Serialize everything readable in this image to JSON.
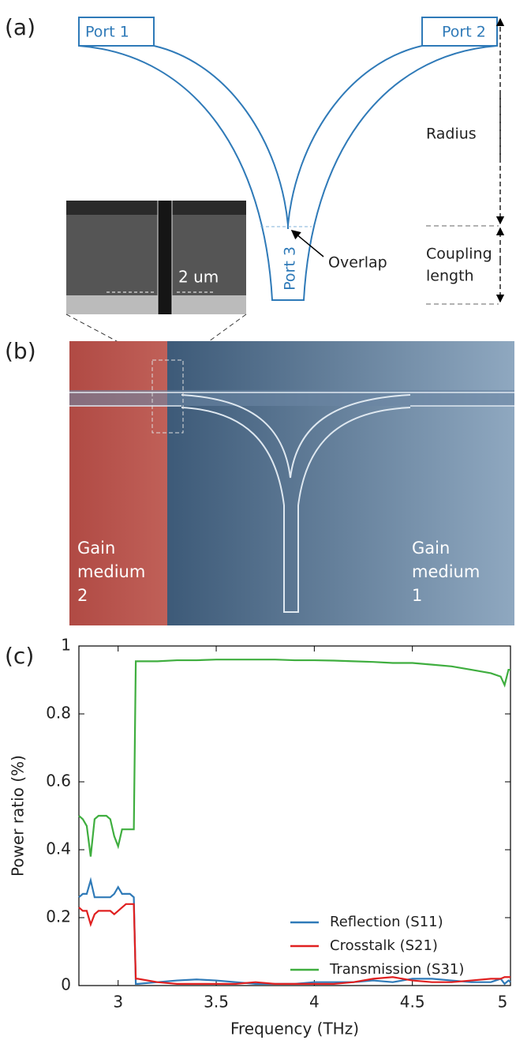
{
  "panel_labels": [
    "(a)",
    "(b)",
    "(c)"
  ],
  "diagram": {
    "port_1": "Port 1",
    "port_2": "Port 2",
    "port_3": "Port 3",
    "radius": "Radius",
    "overlap": "Overlap",
    "coupling_length": [
      "Coupling",
      "length"
    ],
    "inset_scale": "2 um"
  },
  "image": {
    "gain_medium_2": [
      "Gain",
      "medium",
      "2"
    ],
    "gain_medium_1": [
      "Gain",
      "medium",
      "1"
    ]
  },
  "chart_data": {
    "type": "line",
    "x_label": "Frequency (THz)",
    "y_label": "Power ratio (%)",
    "x": [
      2.8,
      2.82,
      2.84,
      2.86,
      2.88,
      2.9,
      2.92,
      2.94,
      2.96,
      2.98,
      3.0,
      3.02,
      3.04,
      3.06,
      3.08,
      3.09,
      3.1,
      3.2,
      3.3,
      3.4,
      3.5,
      3.6,
      3.7,
      3.8,
      3.9,
      4.0,
      4.1,
      4.2,
      4.3,
      4.4,
      4.5,
      4.6,
      4.7,
      4.8,
      4.9,
      4.95,
      4.97,
      4.99,
      5.0
    ],
    "series": [
      {
        "name": "Reflection (S11)",
        "color": "#2f7ab8",
        "values": [
          0.26,
          0.27,
          0.27,
          0.31,
          0.26,
          0.26,
          0.26,
          0.26,
          0.26,
          0.27,
          0.29,
          0.27,
          0.27,
          0.27,
          0.26,
          0.005,
          0.005,
          0.01,
          0.015,
          0.018,
          0.015,
          0.01,
          0.005,
          0.005,
          0.005,
          0.01,
          0.01,
          0.01,
          0.015,
          0.01,
          0.02,
          0.02,
          0.015,
          0.01,
          0.01,
          0.02,
          0.005,
          0.015,
          0.01
        ]
      },
      {
        "name": "Crosstalk (S21)",
        "color": "#e02020",
        "values": [
          0.23,
          0.22,
          0.22,
          0.18,
          0.21,
          0.22,
          0.22,
          0.22,
          0.22,
          0.21,
          0.22,
          0.23,
          0.24,
          0.24,
          0.24,
          0.02,
          0.02,
          0.01,
          0.005,
          0.005,
          0.005,
          0.005,
          0.01,
          0.005,
          0.005,
          0.005,
          0.005,
          0.01,
          0.02,
          0.025,
          0.015,
          0.01,
          0.01,
          0.015,
          0.02,
          0.02,
          0.025,
          0.025,
          0.025
        ]
      },
      {
        "name": "Transmission (S31)",
        "color": "#3fae3f",
        "values": [
          0.5,
          0.49,
          0.47,
          0.38,
          0.49,
          0.5,
          0.5,
          0.5,
          0.49,
          0.44,
          0.41,
          0.46,
          0.46,
          0.46,
          0.46,
          0.955,
          0.955,
          0.955,
          0.958,
          0.958,
          0.96,
          0.96,
          0.96,
          0.96,
          0.958,
          0.958,
          0.957,
          0.955,
          0.953,
          0.95,
          0.95,
          0.945,
          0.94,
          0.93,
          0.92,
          0.91,
          0.885,
          0.93,
          0.93
        ]
      }
    ],
    "xlim": [
      2.8,
      5
    ],
    "ylim": [
      0,
      1
    ],
    "xticks": [
      3,
      3.5,
      4,
      4.5,
      5
    ],
    "yticks": [
      0,
      0.2,
      0.4,
      0.6,
      0.8,
      1
    ],
    "legend": "lower right"
  }
}
